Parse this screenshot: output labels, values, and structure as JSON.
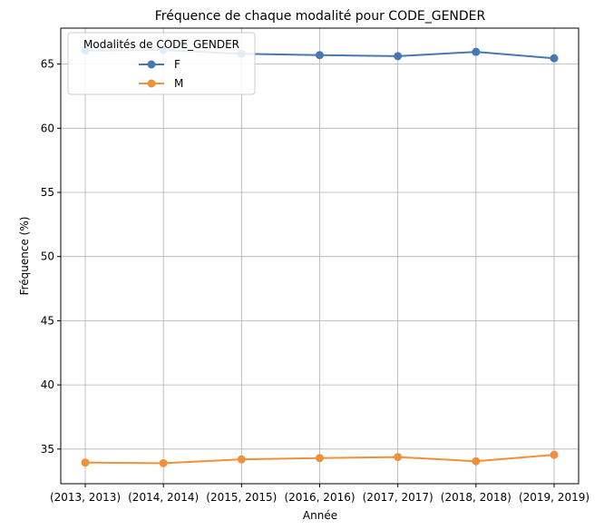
{
  "chart_data": {
    "type": "line",
    "title": "Fréquence de chaque modalité pour CODE_GENDER",
    "xlabel": "Année",
    "ylabel": "Fréquence (%)",
    "categories": [
      "(2013, 2013)",
      "(2014, 2014)",
      "(2015, 2015)",
      "(2016, 2016)",
      "(2017, 2017)",
      "(2018, 2018)",
      "(2019, 2019)"
    ],
    "ylim": [
      32.3,
      67.8
    ],
    "yticks": [
      35,
      40,
      45,
      50,
      55,
      60,
      65
    ],
    "grid": true,
    "legend": {
      "title": "Modalités de CODE_GENDER",
      "placement": "top-left"
    },
    "series": [
      {
        "name": "F",
        "color": "#4878b4",
        "values": [
          66.05,
          66.1,
          65.8,
          65.7,
          65.62,
          65.95,
          65.45
        ]
      },
      {
        "name": "M",
        "color": "#f0903a",
        "values": [
          33.95,
          33.9,
          34.2,
          34.3,
          34.38,
          34.05,
          34.55
        ]
      }
    ]
  }
}
